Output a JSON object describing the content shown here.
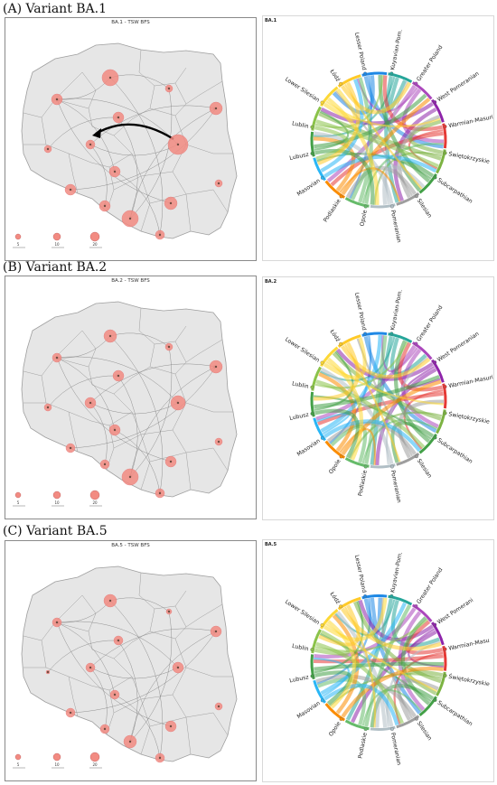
{
  "panels": [
    {
      "label": "(A) Variant BA.1",
      "map_title": "BA.1 - TSW BFS",
      "chord_title": "BA.1",
      "legend": [
        "5",
        "10",
        "20"
      ],
      "circle_sizes": [
        9,
        6,
        6,
        4,
        5,
        11,
        4,
        7,
        6,
        9,
        6,
        6,
        7,
        4,
        5
      ],
      "highlight_flow": true,
      "chord_regions": [
        "Lesser Poland",
        "Kuyavian-Pom.",
        "Greater Poland",
        "West Pomeranian",
        "Warmian-Masuri",
        "Świętokrzyskie",
        "Subcarpathian",
        "Silesian",
        "Pomeranian",
        "Opole",
        "Podlaskie",
        "Masovian",
        "Lubusz",
        "Lublin",
        "Lower Silesian",
        "Łódź"
      ]
    },
    {
      "label": "(B) Variant BA.2",
      "map_title": "BA.2 - TSW BFS",
      "chord_title": "BA.2",
      "legend": [
        "5",
        "10",
        "20"
      ],
      "circle_sizes": [
        7,
        5,
        6,
        4,
        6,
        8,
        4,
        7,
        6,
        9,
        5,
        5,
        6,
        4,
        5
      ],
      "highlight_flow": false,
      "chord_regions": [
        "Lesser Poland",
        "Kuyavian-Pom.",
        "Greater Poland",
        "West Pomeranian",
        "Warmian-Masurian",
        "Świętokrzyskie",
        "Subcarpathian",
        "Silesian",
        "Pomeranian",
        "Podlaskie",
        "Opole",
        "Masovian",
        "Lubusz",
        "Lublin",
        "Lower Silesian",
        "Łódź"
      ]
    },
    {
      "label": "(C) Variant BA.5",
      "map_title": "BA.5 - TSW BFS",
      "chord_title": "BA.5",
      "legend": [
        "5",
        "10",
        "20"
      ],
      "circle_sizes": [
        7,
        5,
        5,
        2,
        5,
        6,
        3,
        6,
        5,
        7,
        5,
        5,
        6,
        4,
        5
      ],
      "highlight_flow": false,
      "chord_regions": [
        "Lesser Poland",
        "Kuyavian-Pom.",
        "Greater Poland",
        "West Pomerani",
        "Warmian-Masu",
        "Świętokrzyskie",
        "Subcarpathian",
        "Silesian",
        "Pomeranian",
        "Podlaskie",
        "Opole",
        "Masovian",
        "Lubusz",
        "Lublin",
        "Lower Silesian",
        "Łódź"
      ]
    }
  ],
  "colors": {
    "circle_fill": "#f28b82",
    "circle_stroke": "#e57373",
    "map_fill": "#e6e6e6",
    "border": "#9e9e9e",
    "flow": "#7a7a7a",
    "highlight": "#000000"
  }
}
